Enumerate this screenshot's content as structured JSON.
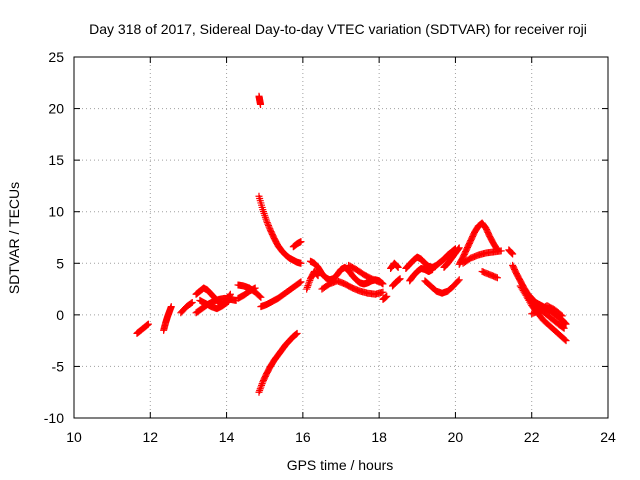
{
  "chart_data": {
    "type": "scatter",
    "title": "Day 318 of 2017, Sidereal Day-to-day VTEC variation (SDTVAR) for receiver roji",
    "xlabel": "GPS time / hours",
    "ylabel": "SDTVAR / TECUs",
    "xlim": [
      10,
      24
    ],
    "ylim": [
      -10,
      25
    ],
    "xticks": [
      10,
      12,
      14,
      16,
      18,
      20,
      22,
      24
    ],
    "yticks": [
      -10,
      -5,
      0,
      5,
      10,
      15,
      20,
      25
    ],
    "xtick_labels": [
      "10",
      "12",
      "14",
      "16",
      "18",
      "20",
      "22",
      "24"
    ],
    "ytick_labels": [
      "-10",
      "-5",
      "0",
      "5",
      "10",
      "15",
      "20",
      "25"
    ],
    "grid": true,
    "marker": "plus",
    "color": "#ff0000",
    "segments": [
      {
        "x": [
          11.65,
          11.75,
          11.85,
          11.95
        ],
        "y": [
          -1.8,
          -1.5,
          -1.2,
          -0.9
        ]
      },
      {
        "x": [
          12.35,
          12.4,
          12.45,
          12.5,
          12.55
        ],
        "y": [
          -1.5,
          -0.8,
          -0.2,
          0.3,
          0.8
        ]
      },
      {
        "x": [
          12.8,
          12.95,
          13.1
        ],
        "y": [
          0.2,
          0.8,
          1.2
        ]
      },
      {
        "x": [
          13.2,
          13.3,
          13.4,
          13.5,
          13.6,
          13.7,
          13.8,
          13.9,
          14.0,
          14.1
        ],
        "y": [
          2.0,
          2.3,
          2.6,
          2.4,
          2.0,
          1.6,
          1.2,
          1.0,
          1.4,
          2.0
        ]
      },
      {
        "x": [
          13.2,
          13.35,
          13.5,
          13.65,
          13.8,
          13.95,
          14.1,
          14.25
        ],
        "y": [
          0.2,
          0.6,
          1.0,
          1.3,
          1.5,
          1.6,
          1.5,
          1.4
        ]
      },
      {
        "x": [
          13.3,
          13.45,
          13.6,
          13.75,
          13.9,
          14.05
        ],
        "y": [
          1.4,
          1.1,
          0.8,
          0.6,
          0.9,
          1.3
        ]
      },
      {
        "x": [
          14.3,
          14.45,
          14.6,
          14.75,
          14.9
        ],
        "y": [
          2.9,
          2.8,
          2.6,
          2.2,
          1.7
        ]
      },
      {
        "x": [
          14.3,
          14.45,
          14.6,
          14.75
        ],
        "y": [
          1.6,
          1.9,
          2.3,
          2.6
        ]
      },
      {
        "x": [
          14.85,
          14.87,
          14.89
        ],
        "y": [
          21.2,
          20.8,
          20.4
        ]
      },
      {
        "x": [
          14.85,
          14.95,
          15.05,
          15.15,
          15.25,
          15.35,
          15.45,
          15.55,
          15.65,
          15.75,
          15.85,
          15.95
        ],
        "y": [
          11.5,
          10.2,
          9.1,
          8.2,
          7.4,
          6.7,
          6.2,
          5.8,
          5.5,
          5.3,
          5.1,
          5.0
        ]
      },
      {
        "x": [
          14.85,
          14.95,
          15.05,
          15.15,
          15.25,
          15.35,
          15.45,
          15.55,
          15.65,
          15.75,
          15.85
        ],
        "y": [
          -7.5,
          -6.5,
          -5.7,
          -5.0,
          -4.4,
          -3.9,
          -3.4,
          -2.9,
          -2.5,
          -2.1,
          -1.8
        ]
      },
      {
        "x": [
          14.9,
          15.05,
          15.2,
          15.35,
          15.5,
          15.65,
          15.8,
          15.95
        ],
        "y": [
          0.8,
          1.0,
          1.3,
          1.6,
          2.0,
          2.4,
          2.8,
          3.2
        ]
      },
      {
        "x": [
          15.75,
          15.85,
          15.95
        ],
        "y": [
          6.6,
          6.9,
          7.1
        ]
      },
      {
        "x": [
          16.1,
          16.2,
          16.3,
          16.4
        ],
        "y": [
          2.5,
          3.5,
          4.2,
          3.8
        ]
      },
      {
        "x": [
          16.2,
          16.3,
          16.4,
          16.5,
          16.6,
          16.7,
          16.8,
          16.9,
          17.0,
          17.1,
          17.2,
          17.3,
          17.4,
          17.5,
          17.6,
          17.7,
          17.8,
          17.9,
          18.0,
          18.1
        ],
        "y": [
          5.2,
          5.0,
          4.6,
          4.0,
          3.6,
          3.4,
          3.5,
          3.9,
          4.4,
          4.6,
          4.3,
          3.8,
          3.4,
          3.1,
          3.0,
          3.1,
          3.3,
          3.4,
          3.3,
          3.0
        ]
      },
      {
        "x": [
          16.5,
          16.7,
          16.9,
          17.1,
          17.3,
          17.5,
          17.7,
          17.9,
          18.1
        ],
        "y": [
          2.5,
          3.0,
          3.3,
          3.0,
          2.6,
          2.3,
          2.1,
          2.0,
          2.2
        ]
      },
      {
        "x": [
          17.2,
          17.4,
          17.6,
          17.8,
          18.0
        ],
        "y": [
          4.8,
          4.4,
          3.9,
          3.5,
          3.2
        ]
      },
      {
        "x": [
          18.1,
          18.2
        ],
        "y": [
          1.5,
          1.8
        ]
      },
      {
        "x": [
          18.3,
          18.4,
          18.5
        ],
        "y": [
          4.5,
          5.0,
          4.6
        ]
      },
      {
        "x": [
          18.35,
          18.45,
          18.55
        ],
        "y": [
          2.8,
          3.2,
          3.5
        ]
      },
      {
        "x": [
          18.7,
          18.8,
          18.9,
          19.0,
          19.1,
          19.2,
          19.3,
          19.4,
          19.5,
          19.6,
          19.7,
          19.8,
          19.9,
          20.0
        ],
        "y": [
          4.5,
          4.9,
          5.3,
          5.6,
          5.4,
          5.0,
          4.7,
          4.6,
          4.8,
          5.1,
          5.4,
          5.8,
          6.1,
          6.4
        ]
      },
      {
        "x": [
          18.8,
          18.9,
          19.0,
          19.1,
          19.2,
          19.3,
          19.4
        ],
        "y": [
          3.3,
          3.8,
          4.2,
          4.5,
          4.4,
          4.2,
          4.4
        ]
      },
      {
        "x": [
          19.2,
          19.35,
          19.5,
          19.65,
          19.8,
          19.95,
          20.1
        ],
        "y": [
          3.3,
          2.8,
          2.3,
          2.1,
          2.3,
          2.8,
          3.4
        ]
      },
      {
        "x": [
          19.7,
          19.8,
          19.9,
          20.0,
          20.1
        ],
        "y": [
          4.6,
          5.0,
          5.5,
          6.0,
          6.5
        ]
      },
      {
        "x": [
          20.1,
          20.2,
          20.3,
          20.4,
          20.5,
          20.6,
          20.7,
          20.8,
          20.9,
          21.0,
          21.1
        ],
        "y": [
          4.9,
          5.6,
          6.4,
          7.2,
          8.0,
          8.6,
          8.9,
          8.4,
          7.6,
          6.9,
          6.3
        ]
      },
      {
        "x": [
          20.2,
          20.4,
          20.6,
          20.8,
          21.0,
          21.2
        ],
        "y": [
          5.0,
          5.5,
          5.8,
          6.0,
          6.1,
          6.2
        ]
      },
      {
        "x": [
          20.7,
          20.9,
          21.1
        ],
        "y": [
          4.2,
          3.9,
          3.6
        ]
      },
      {
        "x": [
          21.4,
          21.5
        ],
        "y": [
          6.3,
          5.9
        ]
      },
      {
        "x": [
          21.5,
          21.6,
          21.7,
          21.8,
          21.9,
          22.0,
          22.1,
          22.2,
          22.3,
          22.4,
          22.5,
          22.6,
          22.7,
          22.8,
          22.9
        ],
        "y": [
          4.8,
          4.0,
          3.3,
          2.6,
          2.0,
          1.6,
          1.2,
          1.0,
          0.8,
          0.6,
          0.4,
          0.1,
          -0.2,
          -0.5,
          -0.9
        ]
      },
      {
        "x": [
          21.7,
          21.85,
          22.0,
          22.15,
          22.3,
          22.45,
          22.6,
          22.75,
          22.9
        ],
        "y": [
          2.8,
          1.9,
          0.9,
          0.2,
          -0.5,
          -1.0,
          -1.5,
          -2.0,
          -2.5
        ]
      },
      {
        "x": [
          21.9,
          22.1,
          22.3,
          22.5,
          22.7,
          22.85
        ],
        "y": [
          1.6,
          1.0,
          0.3,
          -0.3,
          -0.9,
          -1.3
        ]
      },
      {
        "x": [
          22.0,
          22.2,
          22.4,
          22.6,
          22.8
        ],
        "y": [
          0.1,
          0.4,
          0.9,
          0.5,
          -0.1
        ]
      }
    ]
  }
}
